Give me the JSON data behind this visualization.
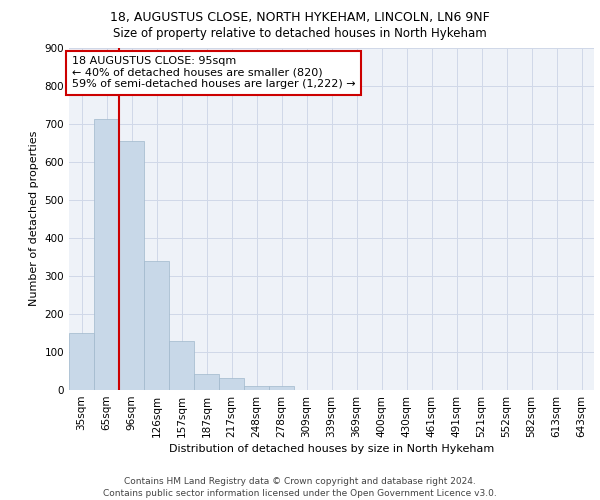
{
  "title1": "18, AUGUSTUS CLOSE, NORTH HYKEHAM, LINCOLN, LN6 9NF",
  "title2": "Size of property relative to detached houses in North Hykeham",
  "xlabel": "Distribution of detached houses by size in North Hykeham",
  "ylabel": "Number of detached properties",
  "categories": [
    "35sqm",
    "65sqm",
    "96sqm",
    "126sqm",
    "157sqm",
    "187sqm",
    "217sqm",
    "248sqm",
    "278sqm",
    "309sqm",
    "339sqm",
    "369sqm",
    "400sqm",
    "430sqm",
    "461sqm",
    "491sqm",
    "521sqm",
    "552sqm",
    "582sqm",
    "613sqm",
    "643sqm"
  ],
  "values": [
    150,
    713,
    655,
    340,
    130,
    42,
    32,
    11,
    10,
    0,
    0,
    0,
    0,
    0,
    0,
    0,
    0,
    0,
    0,
    0,
    0
  ],
  "bar_color": "#c8d8e8",
  "bar_edge_color": "#a0b8cc",
  "vline_color": "#cc0000",
  "vline_x_index": 1.5,
  "annotation_text": "18 AUGUSTUS CLOSE: 95sqm\n← 40% of detached houses are smaller (820)\n59% of semi-detached houses are larger (1,222) →",
  "annotation_box_color": "#cc0000",
  "ylim": [
    0,
    900
  ],
  "yticks": [
    0,
    100,
    200,
    300,
    400,
    500,
    600,
    700,
    800,
    900
  ],
  "grid_color": "#d0d8e8",
  "background_color": "#eef2f8",
  "footer": "Contains HM Land Registry data © Crown copyright and database right 2024.\nContains public sector information licensed under the Open Government Licence v3.0.",
  "title1_fontsize": 9,
  "title2_fontsize": 8.5,
  "xlabel_fontsize": 8,
  "ylabel_fontsize": 8,
  "tick_fontsize": 7.5,
  "annotation_fontsize": 8,
  "footer_fontsize": 6.5
}
